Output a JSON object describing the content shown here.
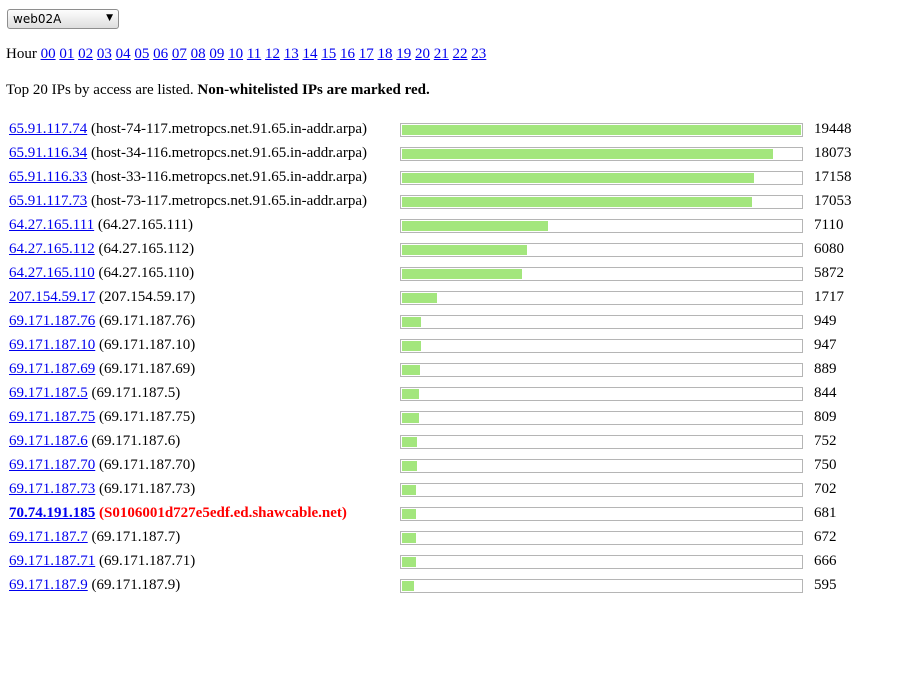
{
  "server_select": {
    "value": "web02A"
  },
  "hour_nav": {
    "label": "Hour",
    "hours": [
      "00",
      "01",
      "02",
      "03",
      "04",
      "05",
      "06",
      "07",
      "08",
      "09",
      "10",
      "11",
      "12",
      "13",
      "14",
      "15",
      "16",
      "17",
      "18",
      "19",
      "20",
      "21",
      "22",
      "23"
    ]
  },
  "intro": {
    "text": "Top 20 IPs by access are listed. ",
    "bold": "Non-whitelisted IPs are marked red."
  },
  "bar_color": "#a3e67d",
  "flag_color": "#ff0000",
  "max_count": 19448,
  "rows": [
    {
      "ip": "65.91.117.74",
      "rdns": "(host-74-117.metropcs.net.91.65.in-addr.arpa)",
      "count": 19448,
      "whitelisted": true
    },
    {
      "ip": "65.91.116.34",
      "rdns": "(host-34-116.metropcs.net.91.65.in-addr.arpa)",
      "count": 18073,
      "whitelisted": true
    },
    {
      "ip": "65.91.116.33",
      "rdns": "(host-33-116.metropcs.net.91.65.in-addr.arpa)",
      "count": 17158,
      "whitelisted": true
    },
    {
      "ip": "65.91.117.73",
      "rdns": "(host-73-117.metropcs.net.91.65.in-addr.arpa)",
      "count": 17053,
      "whitelisted": true
    },
    {
      "ip": "64.27.165.111",
      "rdns": "(64.27.165.111)",
      "count": 7110,
      "whitelisted": true
    },
    {
      "ip": "64.27.165.112",
      "rdns": "(64.27.165.112)",
      "count": 6080,
      "whitelisted": true
    },
    {
      "ip": "64.27.165.110",
      "rdns": "(64.27.165.110)",
      "count": 5872,
      "whitelisted": true
    },
    {
      "ip": "207.154.59.17",
      "rdns": "(207.154.59.17)",
      "count": 1717,
      "whitelisted": true
    },
    {
      "ip": "69.171.187.76",
      "rdns": "(69.171.187.76)",
      "count": 949,
      "whitelisted": true
    },
    {
      "ip": "69.171.187.10",
      "rdns": "(69.171.187.10)",
      "count": 947,
      "whitelisted": true
    },
    {
      "ip": "69.171.187.69",
      "rdns": "(69.171.187.69)",
      "count": 889,
      "whitelisted": true
    },
    {
      "ip": "69.171.187.5",
      "rdns": "(69.171.187.5)",
      "count": 844,
      "whitelisted": true
    },
    {
      "ip": "69.171.187.75",
      "rdns": "(69.171.187.75)",
      "count": 809,
      "whitelisted": true
    },
    {
      "ip": "69.171.187.6",
      "rdns": "(69.171.187.6)",
      "count": 752,
      "whitelisted": true
    },
    {
      "ip": "69.171.187.70",
      "rdns": "(69.171.187.70)",
      "count": 750,
      "whitelisted": true
    },
    {
      "ip": "69.171.187.73",
      "rdns": "(69.171.187.73)",
      "count": 702,
      "whitelisted": true
    },
    {
      "ip": "70.74.191.185",
      "rdns": "(S0106001d727e5edf.ed.shawcable.net)",
      "count": 681,
      "whitelisted": false
    },
    {
      "ip": "69.171.187.7",
      "rdns": "(69.171.187.7)",
      "count": 672,
      "whitelisted": true
    },
    {
      "ip": "69.171.187.71",
      "rdns": "(69.171.187.71)",
      "count": 666,
      "whitelisted": true
    },
    {
      "ip": "69.171.187.9",
      "rdns": "(69.171.187.9)",
      "count": 595,
      "whitelisted": true
    }
  ]
}
